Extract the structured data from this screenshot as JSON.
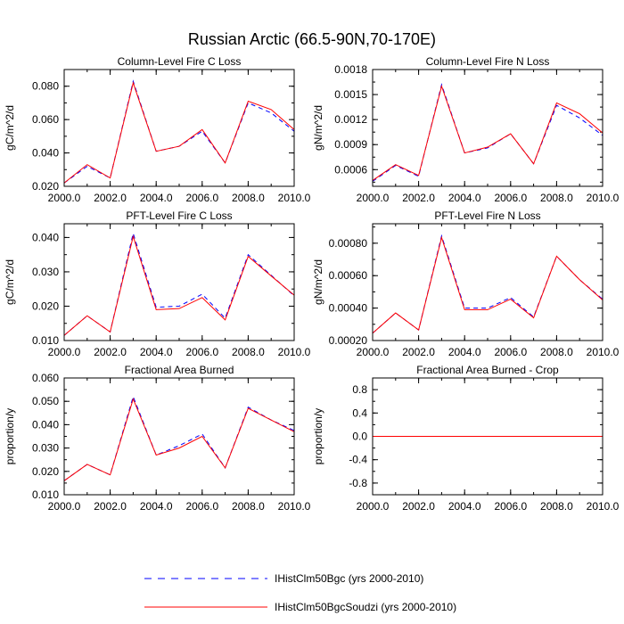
{
  "figure_title": "Russian Arctic (66.5-90N,70-170E)",
  "legend": [
    {
      "label": "IHistClm50Bgc (yrs 2000-2010)",
      "color": "#0000ff",
      "dash": "dashed"
    },
    {
      "label": "IHistClm50BgcSoudzi (yrs 2000-2010)",
      "color": "#ff0000",
      "dash": "solid"
    }
  ],
  "chart_data": [
    {
      "type": "line",
      "title": "Column-Level Fire C Loss",
      "ylabel": "gC/m^2/d",
      "xlim": [
        2000,
        2010
      ],
      "ylim": [
        0.02,
        0.09
      ],
      "xticks": [
        "2000.0",
        "2002.0",
        "2004.0",
        "2006.0",
        "2008.0",
        "2010.0"
      ],
      "yticks": [
        0.02,
        0.04,
        0.06,
        0.08
      ],
      "ytick_labels": [
        "0.020",
        "0.040",
        "0.060",
        "0.080"
      ],
      "x": [
        2000,
        2001,
        2002,
        2003,
        2004,
        2005,
        2006,
        2007,
        2008,
        2009,
        2010
      ],
      "series": [
        {
          "values": [
            0.022,
            0.032,
            0.025,
            0.083,
            0.041,
            0.044,
            0.053,
            0.034,
            0.07,
            0.064,
            0.053
          ]
        },
        {
          "values": [
            0.022,
            0.033,
            0.025,
            0.082,
            0.041,
            0.044,
            0.054,
            0.034,
            0.071,
            0.066,
            0.054
          ]
        }
      ]
    },
    {
      "type": "line",
      "title": "Column-Level Fire N Loss",
      "ylabel": "gN/m^2/d",
      "xlim": [
        2000,
        2010
      ],
      "ylim": [
        0.0004,
        0.0018
      ],
      "xticks": [
        "2000.0",
        "2002.0",
        "2004.0",
        "2006.0",
        "2008.0",
        "2010.0"
      ],
      "yticks": [
        0.0006,
        0.0009,
        0.0012,
        0.0015,
        0.0018
      ],
      "ytick_labels": [
        "0.0006",
        "0.0009",
        "0.0012",
        "0.0015",
        "0.0018"
      ],
      "x": [
        2000,
        2001,
        2002,
        2003,
        2004,
        2005,
        2006,
        2007,
        2008,
        2009,
        2010
      ],
      "series": [
        {
          "values": [
            0.00046,
            0.00065,
            0.00052,
            0.00162,
            0.0008,
            0.00086,
            0.00103,
            0.00067,
            0.00137,
            0.00122,
            0.00101
          ]
        },
        {
          "values": [
            0.00047,
            0.00066,
            0.00053,
            0.0016,
            0.0008,
            0.00087,
            0.00103,
            0.00067,
            0.0014,
            0.00127,
            0.00104
          ]
        }
      ]
    },
    {
      "type": "line",
      "title": "PFT-Level Fire C Loss",
      "ylabel": "gC/m^2/d",
      "xlim": [
        2000,
        2010
      ],
      "ylim": [
        0.01,
        0.044
      ],
      "xticks": [
        "2000.0",
        "2002.0",
        "2004.0",
        "2006.0",
        "2008.0",
        "2010.0"
      ],
      "yticks": [
        0.01,
        0.02,
        0.03,
        0.04
      ],
      "ytick_labels": [
        "0.010",
        "0.020",
        "0.030",
        "0.040"
      ],
      "x": [
        2000,
        2001,
        2002,
        2003,
        2004,
        2005,
        2006,
        2007,
        2008,
        2009,
        2010
      ],
      "series": [
        {
          "values": [
            0.0115,
            0.0172,
            0.0125,
            0.0412,
            0.0197,
            0.02,
            0.0235,
            0.0165,
            0.035,
            0.029,
            0.023
          ]
        },
        {
          "values": [
            0.0115,
            0.0172,
            0.0125,
            0.0403,
            0.019,
            0.0193,
            0.0225,
            0.016,
            0.0345,
            0.0288,
            0.0232
          ]
        }
      ]
    },
    {
      "type": "line",
      "title": "PFT-Level Fire N Loss",
      "ylabel": "gN/m^2/d",
      "xlim": [
        2000,
        2010
      ],
      "ylim": [
        0.0002,
        0.00092
      ],
      "xticks": [
        "2000.0",
        "2002.0",
        "2004.0",
        "2006.0",
        "2008.0",
        "2010.0"
      ],
      "yticks": [
        0.0002,
        0.0004,
        0.0006,
        0.0008
      ],
      "ytick_labels": [
        "0.00020",
        "0.00040",
        "0.00060",
        "0.00080"
      ],
      "x": [
        2000,
        2001,
        2002,
        2003,
        2004,
        2005,
        2006,
        2007,
        2008,
        2009,
        2010
      ],
      "series": [
        {
          "values": [
            0.000245,
            0.00037,
            0.000265,
            0.000845,
            0.0004,
            0.0004,
            0.000465,
            0.000345,
            0.00072,
            0.000575,
            0.000455
          ]
        },
        {
          "values": [
            0.000245,
            0.00037,
            0.000265,
            0.000835,
            0.00039,
            0.00039,
            0.000455,
            0.00034,
            0.00072,
            0.000575,
            0.00045
          ]
        }
      ]
    },
    {
      "type": "line",
      "title": "Fractional Area Burned",
      "ylabel": "proportion/y",
      "xlim": [
        2000,
        2010
      ],
      "ylim": [
        0.01,
        0.06
      ],
      "xticks": [
        "2000.0",
        "2002.0",
        "2004.0",
        "2006.0",
        "2008.0",
        "2010.0"
      ],
      "yticks": [
        0.01,
        0.02,
        0.03,
        0.04,
        0.05,
        0.06
      ],
      "ytick_labels": [
        "0.010",
        "0.020",
        "0.030",
        "0.040",
        "0.050",
        "0.060"
      ],
      "x": [
        2000,
        2001,
        2002,
        2003,
        2004,
        2005,
        2006,
        2007,
        2008,
        2009,
        2010
      ],
      "series": [
        {
          "values": [
            0.016,
            0.023,
            0.0185,
            0.052,
            0.027,
            0.031,
            0.036,
            0.0215,
            0.0475,
            0.042,
            0.0375
          ]
        },
        {
          "values": [
            0.016,
            0.023,
            0.0185,
            0.051,
            0.027,
            0.03,
            0.035,
            0.0215,
            0.047,
            0.042,
            0.037
          ]
        }
      ]
    },
    {
      "type": "line",
      "title": "Fractional Area Burned - Crop",
      "ylabel": "proportion/y",
      "xlim": [
        2000,
        2010
      ],
      "ylim": [
        -1.0,
        1.0
      ],
      "xticks": [
        "2000.0",
        "2002.0",
        "2004.0",
        "2006.0",
        "2008.0",
        "2010.0"
      ],
      "yticks": [
        -0.8,
        -0.4,
        0.0,
        0.4,
        0.8
      ],
      "ytick_labels": [
        "-0.8",
        "-0.4",
        "0.0",
        "0.4",
        "0.8"
      ],
      "x": [
        2000,
        2001,
        2002,
        2003,
        2004,
        2005,
        2006,
        2007,
        2008,
        2009,
        2010
      ],
      "series": [
        {
          "values": [
            0,
            0,
            0,
            0,
            0,
            0,
            0,
            0,
            0,
            0,
            0
          ]
        },
        {
          "values": [
            0,
            0,
            0,
            0,
            0,
            0,
            0,
            0,
            0,
            0,
            0
          ]
        }
      ]
    }
  ]
}
